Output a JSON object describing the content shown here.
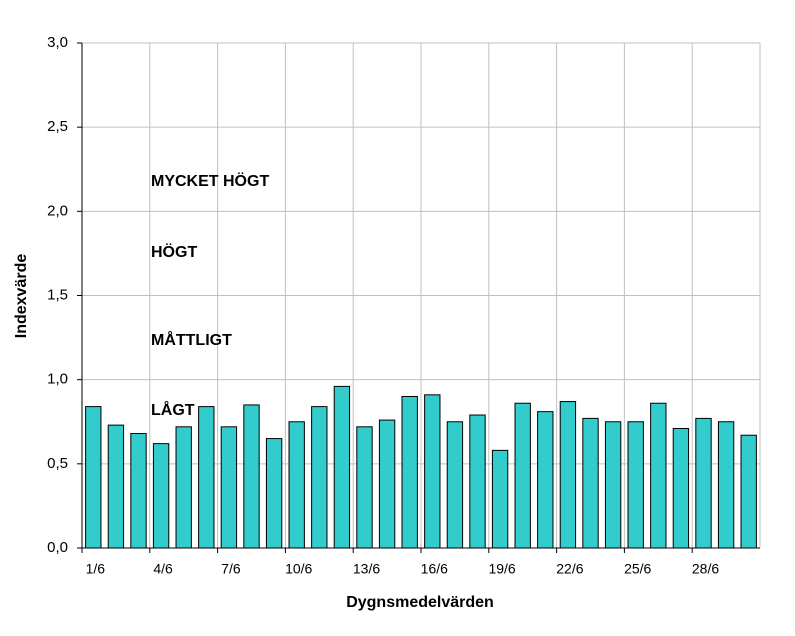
{
  "chart_data": {
    "type": "bar",
    "x_label": "Dygnsmedelvärden",
    "y_label": "Indexvärde",
    "categories": [
      "1/6",
      null,
      null,
      "4/6",
      null,
      null,
      "7/6",
      null,
      null,
      "10/6",
      null,
      null,
      "13/6",
      null,
      null,
      "16/6",
      null,
      null,
      "19/6",
      null,
      null,
      "22/6",
      null,
      null,
      "25/6",
      null,
      null,
      "28/6",
      null,
      null
    ],
    "values": [
      0.84,
      0.73,
      0.68,
      0.62,
      0.72,
      0.84,
      0.72,
      0.85,
      0.65,
      0.75,
      0.84,
      0.96,
      0.72,
      0.76,
      0.9,
      0.91,
      0.75,
      0.79,
      0.58,
      0.86,
      0.81,
      0.87,
      0.77,
      0.75,
      0.75,
      0.86,
      0.71,
      0.77,
      0.75,
      0.67
    ],
    "color": "#33cccc",
    "ylim": [
      0,
      3
    ],
    "yticks": [
      {
        "value": 0,
        "label": "0,0"
      },
      {
        "value": 0.5,
        "label": "0,5"
      },
      {
        "value": 1,
        "label": "1,0"
      },
      {
        "value": 1.5,
        "label": "1,5"
      },
      {
        "value": 2,
        "label": "2,0"
      },
      {
        "value": 2.5,
        "label": "2,5"
      },
      {
        "value": 3,
        "label": "3,0"
      }
    ],
    "grid": true,
    "annotations": [
      {
        "text": "MYCKET HÖGT",
        "color": "#000000"
      },
      {
        "text": "HÖGT",
        "color": "#e31b1b"
      },
      {
        "text": "MÅTTLIGT",
        "color": "#a0440f"
      },
      {
        "text": "LÅGT",
        "color": "#1515c8"
      }
    ]
  }
}
